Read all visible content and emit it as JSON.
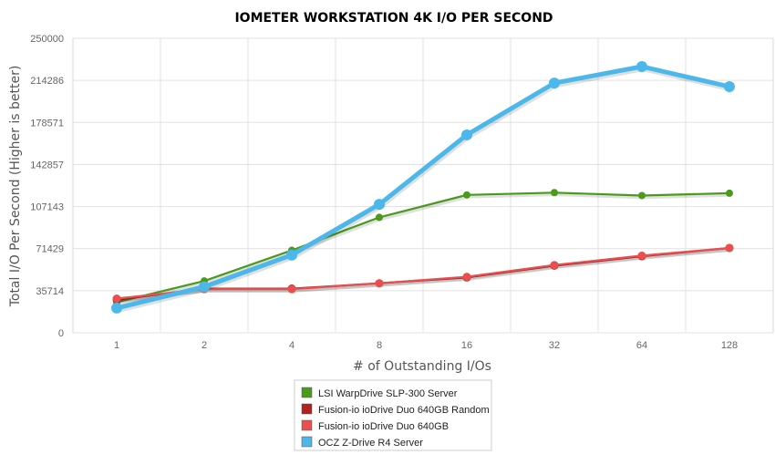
{
  "chart_data": {
    "type": "line",
    "title": "IOMETER WORKSTATION 4K I/O PER SECOND",
    "xlabel": "# of Outstanding I/Os",
    "ylabel": "Total I/O Per Second (Higher is better)",
    "categories": [
      "1",
      "2",
      "4",
      "8",
      "16",
      "32",
      "64",
      "128"
    ],
    "y_ticks": [
      "0",
      "35714",
      "71429",
      "107143",
      "142857",
      "178571",
      "214286",
      "250000"
    ],
    "ylim": [
      0,
      250000
    ],
    "grid": true,
    "legend_position": "bottom",
    "series": [
      {
        "name": "LSI WarpDrive SLP-300 Server",
        "color": "#4a9a1c",
        "values": [
          26000,
          44000,
          70000,
          98000,
          117000,
          119000,
          116500,
          118500
        ]
      },
      {
        "name": "Fusion-io ioDrive Duo 640GB Random",
        "color": "#b22222",
        "values": [
          28000,
          37500,
          37500,
          42000,
          47000,
          57000,
          65000,
          72000
        ]
      },
      {
        "name": "Fusion-io ioDrive Duo 640GB",
        "color": "#ea4f4f",
        "values": [
          29000,
          37000,
          37000,
          42000,
          47500,
          57500,
          65500,
          72000
        ]
      },
      {
        "name": "OCZ Z-Drive R4 Server",
        "color": "#4cb7ea",
        "values": [
          21000,
          39000,
          66000,
          109000,
          168000,
          212000,
          226000,
          209000
        ]
      }
    ]
  }
}
